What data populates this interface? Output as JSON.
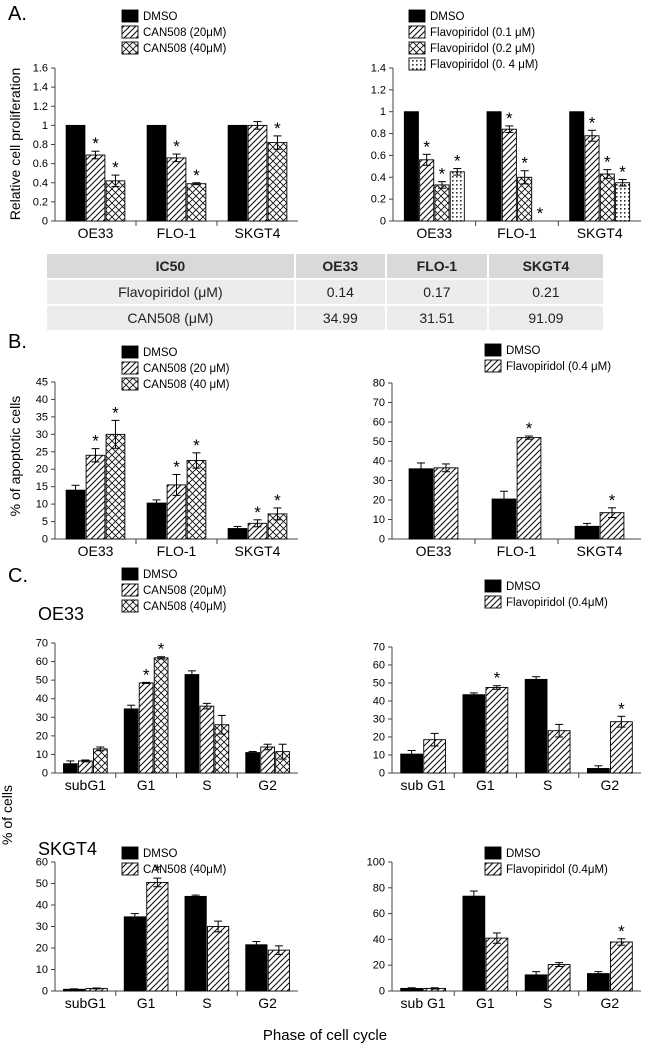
{
  "panel_labels": {
    "a": "A.",
    "b": "B.",
    "c": "C."
  },
  "axis_titles": {
    "a": "Relative cell proliferation",
    "b": "% of apoptotic cells",
    "c": "% of cells",
    "c_x": "Phase of cell cycle"
  },
  "subpanel_titles": {
    "oe33": "OE33",
    "skgt4": "SKGT4"
  },
  "ic50_table": {
    "headers": [
      "IC50",
      "OE33",
      "FLO-1",
      "SKGT4"
    ],
    "rows": [
      [
        "Flavopiridol (μM)",
        "0.14",
        "0.17",
        "0.21"
      ],
      [
        "CAN508 (μM)",
        "34.99",
        "31.51",
        "91.09"
      ]
    ]
  },
  "chart_data": [
    {
      "id": "A1",
      "type": "bar",
      "categories": [
        "OE33",
        "FLO-1",
        "SKGT4"
      ],
      "ylim": [
        0,
        1.6
      ],
      "yticks": [
        0,
        0.2,
        0.4,
        0.6,
        0.8,
        1,
        1.2,
        1.4,
        1.6
      ],
      "ylabel": "Relative cell proliferation",
      "series": [
        {
          "name": "DMSO",
          "pattern": "solid",
          "values": [
            1.0,
            1.0,
            1.0
          ],
          "errors": [
            0,
            0,
            0
          ],
          "sig": [
            false,
            false,
            false
          ]
        },
        {
          "name": "CAN508 (20μM)",
          "pattern": "diag",
          "values": [
            0.69,
            0.66,
            1.0
          ],
          "errors": [
            0.04,
            0.04,
            0.04
          ],
          "sig": [
            true,
            true,
            false
          ]
        },
        {
          "name": "CAN508 (40μM)",
          "pattern": "cross",
          "values": [
            0.42,
            0.39,
            0.82
          ],
          "errors": [
            0.06,
            0.01,
            0.07
          ],
          "sig": [
            true,
            true,
            true
          ]
        }
      ]
    },
    {
      "id": "A2",
      "type": "bar",
      "categories": [
        "OE33",
        "FLO-1",
        "SKGT4"
      ],
      "ylim": [
        0,
        1.4
      ],
      "yticks": [
        0,
        0.2,
        0.4,
        0.6,
        0.8,
        1,
        1.2,
        1.4
      ],
      "series": [
        {
          "name": "DMSO",
          "pattern": "solid",
          "values": [
            1.0,
            1.0,
            1.0
          ],
          "errors": [
            0,
            0,
            0
          ],
          "sig": [
            false,
            false,
            false
          ]
        },
        {
          "name": "Flavopiridol (0.1 μM)",
          "pattern": "diag",
          "values": [
            0.56,
            0.84,
            0.78
          ],
          "errors": [
            0.05,
            0.03,
            0.05
          ],
          "sig": [
            true,
            true,
            true
          ]
        },
        {
          "name": "Flavopiridol (0.2 μM)",
          "pattern": "cross",
          "values": [
            0.33,
            0.4,
            0.43
          ],
          "errors": [
            0.03,
            0.06,
            0.04
          ],
          "sig": [
            true,
            true,
            true
          ]
        },
        {
          "name": "Flavopiridol (0. 4 μM)",
          "pattern": "dots",
          "values": [
            0.45,
            0.0,
            0.35
          ],
          "errors": [
            0.03,
            0,
            0.03
          ],
          "sig": [
            true,
            true,
            true
          ]
        }
      ]
    },
    {
      "id": "B1",
      "type": "bar",
      "categories": [
        "OE33",
        "FLO-1",
        "SKGT4"
      ],
      "ylim": [
        0,
        45
      ],
      "yticks": [
        0,
        5,
        10,
        15,
        20,
        25,
        30,
        35,
        40,
        45
      ],
      "ylabel": "% of apoptotic cells",
      "series": [
        {
          "name": "DMSO",
          "pattern": "solid",
          "values": [
            14,
            10.3,
            3
          ],
          "errors": [
            1.4,
            0.9,
            0.6
          ],
          "sig": [
            false,
            false,
            false
          ]
        },
        {
          "name": "CAN508 (20 μM)",
          "pattern": "diag",
          "values": [
            24,
            15.5,
            4.5
          ],
          "errors": [
            1.9,
            3.0,
            1.0
          ],
          "sig": [
            true,
            true,
            true
          ]
        },
        {
          "name": "CAN508 (40 μM)",
          "pattern": "cross",
          "values": [
            30,
            22.5,
            7.2
          ],
          "errors": [
            4.0,
            2.2,
            1.7
          ],
          "sig": [
            true,
            true,
            true
          ]
        }
      ]
    },
    {
      "id": "B2",
      "type": "bar",
      "categories": [
        "OE33",
        "FLO-1",
        "SKGT4"
      ],
      "ylim": [
        0,
        80
      ],
      "yticks": [
        0,
        10,
        20,
        30,
        40,
        50,
        60,
        70,
        80
      ],
      "series": [
        {
          "name": "DMSO",
          "pattern": "solid",
          "values": [
            36,
            20.5,
            6.5
          ],
          "errors": [
            3.0,
            4.0,
            1.5
          ],
          "sig": [
            false,
            false,
            false
          ]
        },
        {
          "name": "Flavopiridol (0.4 μM)",
          "pattern": "diag",
          "values": [
            36.5,
            52,
            13.5
          ],
          "errors": [
            2.0,
            0.8,
            2.5
          ],
          "sig": [
            false,
            true,
            true
          ]
        }
      ]
    },
    {
      "id": "C1",
      "type": "bar",
      "categories": [
        "subG1",
        "G1",
        "S",
        "G2"
      ],
      "ylim": [
        0,
        70
      ],
      "yticks": [
        0,
        10,
        20,
        30,
        40,
        50,
        60,
        70
      ],
      "series": [
        {
          "name": "DMSO",
          "pattern": "solid",
          "values": [
            5,
            34.5,
            53,
            11
          ],
          "errors": [
            1.5,
            2.0,
            2.0,
            0.6
          ],
          "sig": [
            false,
            false,
            false,
            false
          ]
        },
        {
          "name": "CAN508 (20μM)",
          "pattern": "diag",
          "values": [
            6.5,
            48.5,
            36,
            14
          ],
          "errors": [
            0.5,
            0.3,
            1.5,
            1.5
          ],
          "sig": [
            false,
            true,
            false,
            false
          ]
        },
        {
          "name": "CAN508 (40μM)",
          "pattern": "cross",
          "values": [
            13,
            62,
            26,
            11.5
          ],
          "errors": [
            1.0,
            0.6,
            5.0,
            4.0
          ],
          "sig": [
            false,
            true,
            false,
            false
          ]
        }
      ]
    },
    {
      "id": "C2",
      "type": "bar",
      "categories": [
        "sub G1",
        "G1",
        "S",
        "G2"
      ],
      "ylim": [
        0,
        70
      ],
      "yticks": [
        0,
        10,
        20,
        30,
        40,
        50,
        60,
        70
      ],
      "series": [
        {
          "name": "DMSO",
          "pattern": "solid",
          "values": [
            10.5,
            43.5,
            52,
            2.5
          ],
          "errors": [
            2.0,
            1.0,
            1.5,
            1.5
          ],
          "sig": [
            false,
            false,
            false,
            false
          ]
        },
        {
          "name": "Flavopiridol (0.4μM)",
          "pattern": "diag",
          "values": [
            18.5,
            47.5,
            23.5,
            28.5
          ],
          "errors": [
            3.5,
            1.0,
            3.5,
            3.0
          ],
          "sig": [
            false,
            true,
            false,
            true
          ]
        }
      ]
    },
    {
      "id": "C3",
      "type": "bar",
      "categories": [
        "subG1",
        "G1",
        "S",
        "G2"
      ],
      "ylim": [
        0,
        60
      ],
      "yticks": [
        0,
        10,
        20,
        30,
        40,
        50,
        60
      ],
      "series": [
        {
          "name": "DMSO",
          "pattern": "solid",
          "values": [
            0.8,
            34.5,
            44,
            21.5
          ],
          "errors": [
            0.2,
            1.5,
            0.6,
            1.5
          ],
          "sig": [
            false,
            false,
            false,
            false
          ]
        },
        {
          "name": "CAN508 (40μM)",
          "pattern": "diag",
          "values": [
            1.2,
            50.5,
            30,
            19
          ],
          "errors": [
            0.2,
            2.0,
            2.5,
            2.0
          ],
          "sig": [
            false,
            true,
            false,
            false
          ]
        }
      ]
    },
    {
      "id": "C4",
      "type": "bar",
      "categories": [
        "sub G1",
        "G1",
        "S",
        "G2"
      ],
      "ylim": [
        0,
        100
      ],
      "yticks": [
        0,
        20,
        40,
        60,
        80,
        100
      ],
      "series": [
        {
          "name": "DMSO",
          "pattern": "solid",
          "values": [
            2,
            73.5,
            12.5,
            13.5
          ],
          "errors": [
            0.5,
            4.0,
            2.5,
            1.5
          ],
          "sig": [
            false,
            false,
            false,
            false
          ]
        },
        {
          "name": "Flavopiridol (0.4μM)",
          "pattern": "diag",
          "values": [
            2,
            41,
            20.5,
            38
          ],
          "errors": [
            0.5,
            4.0,
            1.5,
            2.5
          ],
          "sig": [
            false,
            false,
            false,
            true
          ]
        }
      ]
    }
  ]
}
